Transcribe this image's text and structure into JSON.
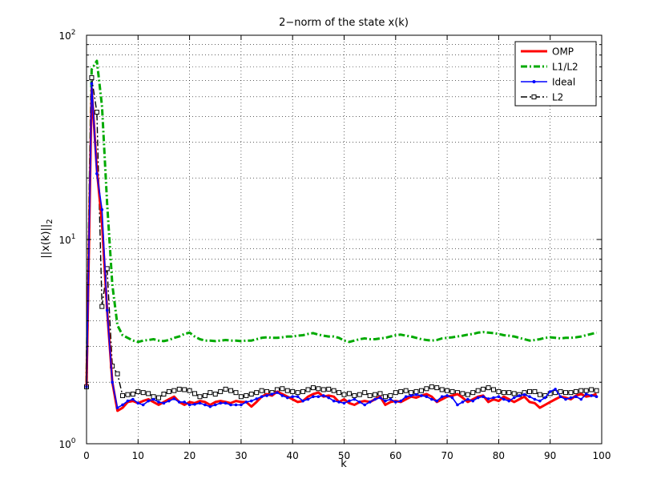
{
  "chart_data": {
    "type": "line",
    "title": "2−norm of the state x(k)",
    "xlabel": "k",
    "ylabel": "||x(k)||",
    "ylabel_sub": "2",
    "xlim": [
      0,
      100
    ],
    "ylim": [
      1,
      100
    ],
    "yscale": "log",
    "grid": true,
    "legend_position": "top-right",
    "xticks": [
      0,
      10,
      20,
      30,
      40,
      50,
      60,
      70,
      80,
      90,
      100
    ],
    "xtick_labels": [
      "0",
      "10",
      "20",
      "30",
      "40",
      "50",
      "60",
      "70",
      "80",
      "90",
      "100"
    ],
    "yticks": [
      {
        "value": 1,
        "base": "10",
        "exp": "0"
      },
      {
        "value": 10,
        "base": "10",
        "exp": "1"
      },
      {
        "value": 100,
        "base": "10",
        "exp": "2"
      }
    ],
    "series": [
      {
        "name": "OMP",
        "color": "#ff0000",
        "style": "solid",
        "marker": "none",
        "x": [
          0,
          1,
          2,
          3,
          4,
          5,
          6,
          7,
          8,
          9,
          10,
          11,
          12,
          13,
          14,
          15,
          16,
          17,
          18,
          19,
          20,
          21,
          22,
          23,
          24,
          25,
          26,
          27,
          28,
          29,
          30,
          31,
          32,
          33,
          34,
          35,
          36,
          37,
          38,
          39,
          40,
          41,
          42,
          43,
          44,
          45,
          46,
          47,
          48,
          49,
          50,
          51,
          52,
          53,
          54,
          55,
          56,
          57,
          58,
          59,
          60,
          61,
          62,
          63,
          64,
          65,
          66,
          67,
          68,
          69,
          70,
          71,
          72,
          73,
          74,
          75,
          76,
          77,
          78,
          79,
          80,
          81,
          82,
          83,
          84,
          85,
          86,
          87,
          88,
          89,
          90,
          91,
          92,
          93,
          94,
          95,
          96,
          97,
          98,
          99
        ],
        "y": [
          1.9,
          55,
          22,
          12,
          4.5,
          2.0,
          1.45,
          1.5,
          1.6,
          1.62,
          1.58,
          1.62,
          1.65,
          1.6,
          1.55,
          1.6,
          1.65,
          1.7,
          1.6,
          1.55,
          1.6,
          1.58,
          1.62,
          1.6,
          1.55,
          1.6,
          1.62,
          1.6,
          1.58,
          1.62,
          1.6,
          1.6,
          1.52,
          1.6,
          1.7,
          1.75,
          1.72,
          1.8,
          1.75,
          1.7,
          1.65,
          1.6,
          1.62,
          1.7,
          1.75,
          1.78,
          1.7,
          1.72,
          1.7,
          1.6,
          1.65,
          1.58,
          1.55,
          1.6,
          1.62,
          1.6,
          1.65,
          1.7,
          1.55,
          1.6,
          1.62,
          1.6,
          1.65,
          1.7,
          1.68,
          1.72,
          1.75,
          1.7,
          1.6,
          1.65,
          1.7,
          1.72,
          1.75,
          1.68,
          1.6,
          1.65,
          1.7,
          1.72,
          1.6,
          1.65,
          1.62,
          1.7,
          1.65,
          1.6,
          1.65,
          1.7,
          1.6,
          1.58,
          1.5,
          1.55,
          1.6,
          1.65,
          1.7,
          1.68,
          1.65,
          1.72,
          1.75,
          1.7,
          1.72,
          1.75
        ]
      },
      {
        "name": "L1/L2",
        "color": "#00aa00",
        "style": "dashdot",
        "marker": "none",
        "x": [
          0,
          1,
          2,
          3,
          4,
          5,
          6,
          7,
          8,
          9,
          10,
          11,
          12,
          13,
          14,
          15,
          16,
          17,
          18,
          19,
          20,
          21,
          22,
          23,
          24,
          25,
          26,
          27,
          28,
          29,
          30,
          31,
          32,
          33,
          34,
          35,
          36,
          37,
          38,
          39,
          40,
          41,
          42,
          43,
          44,
          45,
          46,
          47,
          48,
          49,
          50,
          51,
          52,
          53,
          54,
          55,
          56,
          57,
          58,
          59,
          60,
          61,
          62,
          63,
          64,
          65,
          66,
          67,
          68,
          69,
          70,
          71,
          72,
          73,
          74,
          75,
          76,
          77,
          78,
          79,
          80,
          81,
          82,
          83,
          84,
          85,
          86,
          87,
          88,
          89,
          90,
          91,
          92,
          93,
          94,
          95,
          96,
          97,
          98,
          99
        ],
        "y": [
          2.0,
          68,
          75,
          45,
          15,
          6,
          3.8,
          3.4,
          3.3,
          3.2,
          3.15,
          3.2,
          3.22,
          3.25,
          3.2,
          3.18,
          3.22,
          3.3,
          3.35,
          3.45,
          3.5,
          3.35,
          3.25,
          3.2,
          3.2,
          3.18,
          3.2,
          3.22,
          3.2,
          3.2,
          3.18,
          3.2,
          3.2,
          3.25,
          3.3,
          3.32,
          3.3,
          3.3,
          3.32,
          3.35,
          3.35,
          3.38,
          3.4,
          3.45,
          3.48,
          3.42,
          3.38,
          3.35,
          3.35,
          3.3,
          3.2,
          3.15,
          3.2,
          3.25,
          3.28,
          3.25,
          3.25,
          3.28,
          3.3,
          3.35,
          3.4,
          3.42,
          3.38,
          3.35,
          3.3,
          3.25,
          3.22,
          3.2,
          3.22,
          3.28,
          3.3,
          3.32,
          3.35,
          3.38,
          3.42,
          3.45,
          3.5,
          3.52,
          3.5,
          3.48,
          3.45,
          3.4,
          3.38,
          3.35,
          3.3,
          3.25,
          3.2,
          3.22,
          3.25,
          3.3,
          3.32,
          3.3,
          3.28,
          3.3,
          3.3,
          3.32,
          3.35,
          3.4,
          3.45,
          3.5
        ]
      },
      {
        "name": "Ideal",
        "color": "#0000ff",
        "style": "solid",
        "marker": "dot",
        "x": [
          0,
          1,
          2,
          3,
          4,
          5,
          6,
          7,
          8,
          9,
          10,
          11,
          12,
          13,
          14,
          15,
          16,
          17,
          18,
          19,
          20,
          21,
          22,
          23,
          24,
          25,
          26,
          27,
          28,
          29,
          30,
          31,
          32,
          33,
          34,
          35,
          36,
          37,
          38,
          39,
          40,
          41,
          42,
          43,
          44,
          45,
          46,
          47,
          48,
          49,
          50,
          51,
          52,
          53,
          54,
          55,
          56,
          57,
          58,
          59,
          60,
          61,
          62,
          63,
          64,
          65,
          66,
          67,
          68,
          69,
          70,
          71,
          72,
          73,
          74,
          75,
          76,
          77,
          78,
          79,
          80,
          81,
          82,
          83,
          84,
          85,
          86,
          87,
          88,
          89,
          90,
          91,
          92,
          93,
          94,
          95,
          96,
          97,
          98,
          99
        ],
        "y": [
          1.9,
          58,
          21,
          14,
          4.5,
          2.0,
          1.5,
          1.55,
          1.62,
          1.65,
          1.58,
          1.55,
          1.62,
          1.65,
          1.6,
          1.58,
          1.62,
          1.66,
          1.6,
          1.6,
          1.55,
          1.56,
          1.58,
          1.55,
          1.52,
          1.55,
          1.58,
          1.58,
          1.55,
          1.55,
          1.55,
          1.6,
          1.62,
          1.66,
          1.7,
          1.72,
          1.75,
          1.78,
          1.72,
          1.68,
          1.7,
          1.7,
          1.62,
          1.65,
          1.7,
          1.7,
          1.72,
          1.68,
          1.62,
          1.6,
          1.58,
          1.62,
          1.65,
          1.6,
          1.55,
          1.6,
          1.65,
          1.68,
          1.62,
          1.65,
          1.6,
          1.62,
          1.7,
          1.72,
          1.74,
          1.72,
          1.7,
          1.65,
          1.62,
          1.7,
          1.72,
          1.68,
          1.55,
          1.6,
          1.65,
          1.62,
          1.68,
          1.7,
          1.66,
          1.68,
          1.7,
          1.65,
          1.62,
          1.68,
          1.72,
          1.74,
          1.7,
          1.65,
          1.62,
          1.68,
          1.8,
          1.85,
          1.7,
          1.65,
          1.68,
          1.7,
          1.65,
          1.75,
          1.72,
          1.7
        ]
      },
      {
        "name": "L2",
        "color": "#000000",
        "style": "dashdot",
        "marker": "square",
        "x": [
          0,
          1,
          2,
          3,
          4,
          5,
          6,
          7,
          8,
          9,
          10,
          11,
          12,
          13,
          14,
          15,
          16,
          17,
          18,
          19,
          20,
          21,
          22,
          23,
          24,
          25,
          26,
          27,
          28,
          29,
          30,
          31,
          32,
          33,
          34,
          35,
          36,
          37,
          38,
          39,
          40,
          41,
          42,
          43,
          44,
          45,
          46,
          47,
          48,
          49,
          50,
          51,
          52,
          53,
          54,
          55,
          56,
          57,
          58,
          59,
          60,
          61,
          62,
          63,
          64,
          65,
          66,
          67,
          68,
          69,
          70,
          71,
          72,
          73,
          74,
          75,
          76,
          77,
          78,
          79,
          80,
          81,
          82,
          83,
          84,
          85,
          86,
          87,
          88,
          89,
          90,
          91,
          92,
          93,
          94,
          95,
          96,
          97,
          98,
          99
        ],
        "y": [
          1.9,
          62,
          42,
          4.7,
          7.2,
          2.4,
          2.2,
          1.72,
          1.74,
          1.75,
          1.8,
          1.78,
          1.76,
          1.7,
          1.68,
          1.75,
          1.8,
          1.82,
          1.85,
          1.84,
          1.82,
          1.76,
          1.7,
          1.72,
          1.78,
          1.75,
          1.8,
          1.85,
          1.82,
          1.78,
          1.7,
          1.72,
          1.75,
          1.78,
          1.82,
          1.8,
          1.78,
          1.84,
          1.86,
          1.82,
          1.8,
          1.78,
          1.8,
          1.84,
          1.88,
          1.86,
          1.84,
          1.85,
          1.82,
          1.78,
          1.74,
          1.76,
          1.72,
          1.74,
          1.78,
          1.72,
          1.74,
          1.76,
          1.7,
          1.72,
          1.78,
          1.8,
          1.82,
          1.78,
          1.8,
          1.82,
          1.86,
          1.9,
          1.88,
          1.84,
          1.82,
          1.8,
          1.78,
          1.76,
          1.74,
          1.78,
          1.82,
          1.85,
          1.88,
          1.84,
          1.8,
          1.78,
          1.78,
          1.76,
          1.74,
          1.78,
          1.8,
          1.8,
          1.74,
          1.72,
          1.76,
          1.78,
          1.8,
          1.78,
          1.78,
          1.8,
          1.82,
          1.82,
          1.84,
          1.82
        ]
      }
    ]
  }
}
